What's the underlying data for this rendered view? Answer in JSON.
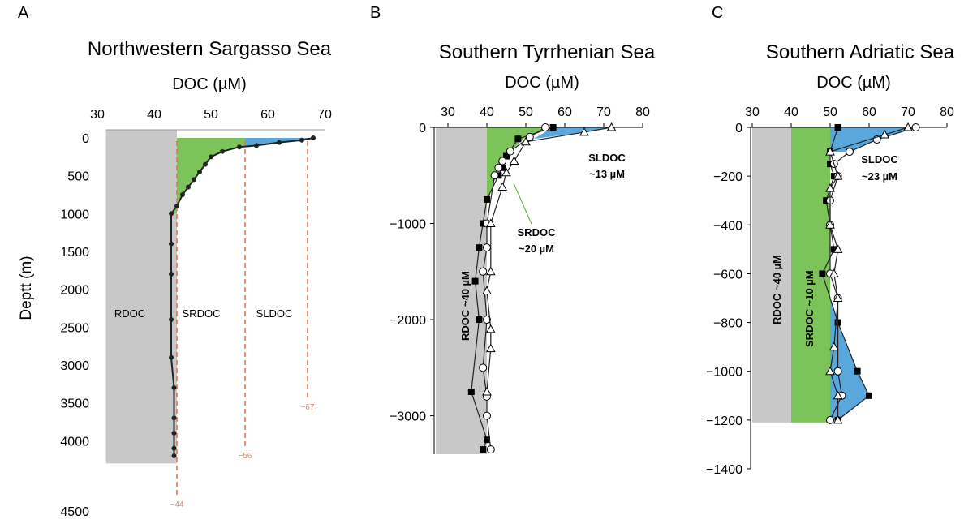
{
  "panels": [
    {
      "letter": "A",
      "title": "Northwestern Sargasso Sea",
      "xlabel": "DOC (µM)",
      "ylabel": "Deptt (m)"
    },
    {
      "letter": "B",
      "title": "Southern Tyrrhenian Sea",
      "xlabel": "DOC (µM)",
      "ylabel": ""
    },
    {
      "letter": "C",
      "title": "Southern Adriatic Sea",
      "xlabel": "DOC (µM)",
      "ylabel": ""
    }
  ],
  "colors": {
    "rdoc": "#c8c8c8",
    "srdoc": "#7cc45a",
    "sldoc": "#5aa7dc",
    "line": "#222222",
    "guide": "#e07050"
  },
  "chart_data": [
    {
      "type": "line",
      "title": "Northwestern Sargasso Sea",
      "xlabel": "DOC (µM)",
      "ylabel": "Deptt (m)",
      "xlim": [
        30,
        70
      ],
      "ylim": [
        0,
        4500
      ],
      "xticks": [
        30,
        40,
        50,
        60,
        70
      ],
      "yticks": [
        0,
        500,
        1000,
        1500,
        2000,
        2500,
        3000,
        3500,
        4000,
        4500
      ],
      "region_labels": [
        "RDOC",
        "SRDOC",
        "SLDOC"
      ],
      "guides": [
        {
          "x": 44,
          "label": "~44"
        },
        {
          "x": 56,
          "label": "~56"
        },
        {
          "x": 67,
          "label": "~67"
        }
      ],
      "series": [
        {
          "x": [
            68,
            66,
            62,
            58,
            55,
            52,
            50,
            49,
            48,
            47,
            46,
            45,
            44,
            43,
            43,
            43,
            43,
            43,
            43.5,
            43.5,
            43.5,
            43.5,
            43.5
          ],
          "y": [
            0,
            30,
            60,
            100,
            120,
            180,
            250,
            350,
            450,
            550,
            650,
            750,
            900,
            1000,
            1400,
            1800,
            2400,
            2900,
            3300,
            3700,
            3900,
            4100,
            4200
          ]
        }
      ]
    },
    {
      "type": "line",
      "title": "Southern Tyrrhenian Sea",
      "xlabel": "DOC (µM)",
      "xlim": [
        30,
        80
      ],
      "ylim": [
        -3400,
        0
      ],
      "xticks": [
        30,
        40,
        50,
        60,
        70,
        80
      ],
      "yticks": [
        0,
        -1000,
        -2000,
        -3000
      ],
      "region_labels": [
        "RDOC ~40 µM",
        "SRDOC ~20 µM",
        "SLDOC ~13 µM"
      ],
      "series": [
        {
          "marker": "square",
          "x": [
            57,
            48,
            45,
            44,
            43,
            40,
            39,
            38,
            37,
            38,
            36,
            40,
            39
          ],
          "y": [
            0,
            -120,
            -300,
            -420,
            -500,
            -750,
            -1000,
            -1250,
            -1600,
            -2000,
            -2750,
            -3250,
            -3350
          ]
        },
        {
          "marker": "circle",
          "x": [
            55,
            51,
            46,
            44,
            43,
            42,
            40,
            40,
            39,
            40,
            39,
            40,
            40,
            41
          ],
          "y": [
            0,
            -100,
            -250,
            -350,
            -420,
            -500,
            -1000,
            -1250,
            -1500,
            -2000,
            -2500,
            -2800,
            -3000,
            -3350
          ]
        },
        {
          "marker": "triangle",
          "x": [
            72,
            65,
            50,
            47,
            45,
            44,
            41,
            41,
            40,
            41,
            41,
            40
          ],
          "y": [
            0,
            -50,
            -150,
            -350,
            -470,
            -620,
            -1000,
            -1500,
            -1700,
            -2100,
            -2300,
            -2750
          ]
        }
      ]
    },
    {
      "type": "line",
      "title": "Southern Adriatic Sea",
      "xlabel": "DOC (µM)",
      "xlim": [
        30,
        80
      ],
      "ylim": [
        -1400,
        0
      ],
      "xticks": [
        30,
        40,
        50,
        60,
        70,
        80
      ],
      "yticks": [
        0,
        -200,
        -400,
        -600,
        -800,
        -1000,
        -1200,
        -1400
      ],
      "region_labels": [
        "RDOC ~40 µM",
        "SRDOC ~10 µM",
        "SLDOC ~23 µM"
      ],
      "series": [
        {
          "marker": "square",
          "x": [
            52,
            50,
            50,
            51,
            49,
            51,
            48,
            52,
            57,
            60,
            52
          ],
          "y": [
            0,
            -100,
            -150,
            -200,
            -300,
            -500,
            -600,
            -800,
            -1000,
            -1100,
            -1200
          ]
        },
        {
          "marker": "circle",
          "x": [
            72,
            62,
            55,
            51,
            52,
            50,
            50,
            50,
            52,
            52,
            53,
            50
          ],
          "y": [
            0,
            -50,
            -100,
            -150,
            -200,
            -300,
            -400,
            -600,
            -700,
            -1000,
            -1100,
            -1200
          ]
        },
        {
          "marker": "triangle",
          "x": [
            70,
            64,
            50,
            52,
            50,
            50,
            52,
            51,
            52,
            51,
            50,
            52,
            52
          ],
          "y": [
            0,
            -30,
            -100,
            -200,
            -250,
            -400,
            -500,
            -600,
            -700,
            -900,
            -1000,
            -1100,
            -1200
          ]
        }
      ]
    }
  ]
}
